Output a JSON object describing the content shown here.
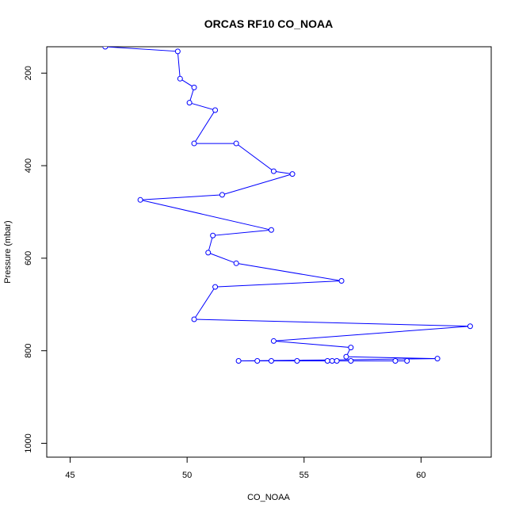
{
  "chart_data": {
    "type": "line",
    "title": "ORCAS RF10 CO_NOAA",
    "xlabel": "CO_NOAA",
    "ylabel": "Pressure (mbar)",
    "xlim": [
      44,
      63
    ],
    "ylim": [
      1030,
      143
    ],
    "y_reversed": true,
    "x_ticks": [
      45,
      50,
      55,
      60
    ],
    "y_ticks": [
      200,
      400,
      600,
      800,
      1000
    ],
    "grid": false,
    "legend": "none",
    "series": [
      {
        "color": "#0000ff",
        "marker": "open-circle",
        "points": [
          [
            46.5,
            143
          ],
          [
            49.6,
            153
          ],
          [
            49.7,
            212
          ],
          [
            50.3,
            231
          ],
          [
            50.1,
            264
          ],
          [
            51.2,
            280
          ],
          [
            50.3,
            352
          ],
          [
            52.1,
            352
          ],
          [
            53.7,
            412
          ],
          [
            54.5,
            418
          ],
          [
            51.5,
            463
          ],
          [
            48.0,
            474
          ],
          [
            53.6,
            539
          ],
          [
            51.1,
            551
          ],
          [
            50.9,
            588
          ],
          [
            52.1,
            611
          ],
          [
            56.6,
            649
          ],
          [
            51.2,
            662
          ],
          [
            50.3,
            732
          ],
          [
            62.1,
            747
          ],
          [
            53.7,
            779
          ],
          [
            57.0,
            793
          ],
          [
            56.8,
            813
          ],
          [
            60.7,
            817
          ],
          [
            52.2,
            822
          ],
          [
            53.0,
            822
          ],
          [
            53.6,
            822
          ],
          [
            54.7,
            822
          ],
          [
            56.0,
            822
          ],
          [
            56.2,
            822
          ],
          [
            56.4,
            822
          ],
          [
            57.0,
            822
          ],
          [
            58.9,
            822
          ],
          [
            59.4,
            822
          ]
        ]
      }
    ]
  }
}
